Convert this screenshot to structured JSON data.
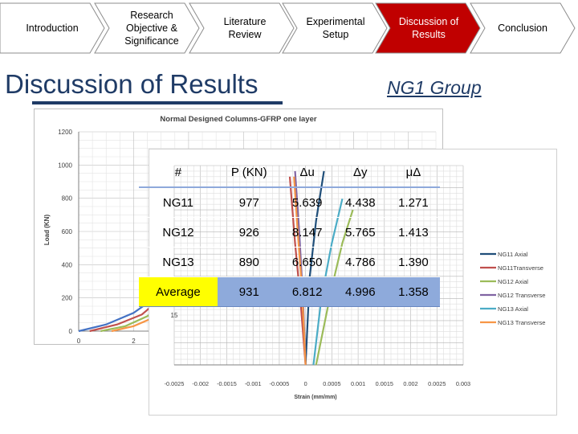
{
  "nav": {
    "items": [
      {
        "label": "Introduction"
      },
      {
        "label": "Research Objective & Significance"
      },
      {
        "label": "Literature Review"
      },
      {
        "label": "Experimental Setup"
      },
      {
        "label": "Discussion of Results"
      },
      {
        "label": "Conclusion"
      }
    ],
    "active_index": 4,
    "active_color": "#c00000",
    "inactive_color": "#ffffff",
    "border_color": "#8c8c8c"
  },
  "page": {
    "title": "Discussion of Results",
    "group": "NG1 Group",
    "title_color": "#1f3b66"
  },
  "table": {
    "headers": [
      "#",
      "P (KN)",
      "Δu",
      "Δy",
      "μΔ"
    ],
    "rows": [
      [
        "NG11",
        "977",
        "5.639",
        "4.438",
        "1.271"
      ],
      [
        "NG12",
        "926",
        "8.147",
        "5.765",
        "1.413"
      ],
      [
        "NG13",
        "890",
        "6.650",
        "4.786",
        "1.390"
      ],
      [
        "Average",
        "931",
        "6.812",
        "4.996",
        "1.358"
      ]
    ],
    "highlight_row_color": "#8eaadb",
    "highlight_first_cell_color": "#ffff00"
  },
  "chart_data": [
    {
      "type": "line",
      "title": "Normal Designed Columns-GFRP one layer",
      "ylabel": "Load (KN)",
      "ylim": [
        0,
        1200
      ],
      "yticks": [
        0,
        200,
        400,
        600,
        800,
        1000,
        1200
      ],
      "xticks": [
        0,
        2
      ],
      "grid": true,
      "series": [
        {
          "color": "#4472c4",
          "points": [
            [
              0,
              0
            ],
            [
              1,
              40
            ],
            [
              2,
              110
            ],
            [
              2.6,
              180
            ]
          ]
        },
        {
          "color": "#c0504d",
          "points": [
            [
              0.4,
              0
            ],
            [
              1.4,
              40
            ],
            [
              2.3,
              100
            ],
            [
              2.8,
              170
            ]
          ]
        },
        {
          "color": "#9bbb59",
          "points": [
            [
              0.8,
              0
            ],
            [
              1.7,
              30
            ],
            [
              2.5,
              90
            ],
            [
              3,
              150
            ]
          ]
        },
        {
          "color": "#f79646",
          "points": [
            [
              1.2,
              0
            ],
            [
              2,
              30
            ],
            [
              2.7,
              80
            ],
            [
              3.2,
              130
            ]
          ]
        }
      ]
    },
    {
      "type": "line",
      "xlabel": "Strain (mm/mm)",
      "xlim": [
        -0.0025,
        0.003
      ],
      "xticks": [
        "-0.0025",
        "-0.002",
        "-0.0015",
        "-0.001",
        "-0.0005",
        "0",
        "0.0005",
        "0.001",
        "0.0015",
        "0.002",
        "0.0025",
        "0.003"
      ],
      "ytick_visible": "15",
      "legend_position": "right",
      "grid": true,
      "series": [
        {
          "name": "NG11 Axial",
          "color": "#1f4e79",
          "points": [
            [
              0,
              0
            ],
            [
              8e-05,
              80
            ],
            [
              0.0002,
              130
            ],
            [
              0.00035,
              175
            ]
          ]
        },
        {
          "name": "NG11Transverse",
          "color": "#c0504d",
          "points": [
            [
              0,
              0
            ],
            [
              -0.0001,
              60
            ],
            [
              -0.0002,
              110
            ],
            [
              -0.0003,
              170
            ]
          ]
        },
        {
          "name": "NG12 Axial",
          "color": "#9bbb59",
          "points": [
            [
              0.0002,
              0
            ],
            [
              0.0005,
              70
            ],
            [
              0.0007,
              110
            ],
            [
              0.0009,
              140
            ]
          ]
        },
        {
          "name": "NG12 Transverse",
          "color": "#8064a2",
          "points": [
            [
              0,
              0
            ],
            [
              -5e-05,
              60
            ],
            [
              -0.00012,
              120
            ],
            [
              -0.0002,
              175
            ]
          ]
        },
        {
          "name": "NG13 Axial",
          "color": "#4bacc6",
          "points": [
            [
              0.00015,
              0
            ],
            [
              0.0003,
              60
            ],
            [
              0.0005,
              110
            ],
            [
              0.0007,
              150
            ]
          ]
        },
        {
          "name": "NG13 Transverse",
          "color": "#f79646",
          "points": [
            [
              0,
              0
            ],
            [
              -7e-05,
              70
            ],
            [
              -0.00015,
              120
            ],
            [
              -0.00022,
              170
            ]
          ]
        }
      ]
    }
  ]
}
